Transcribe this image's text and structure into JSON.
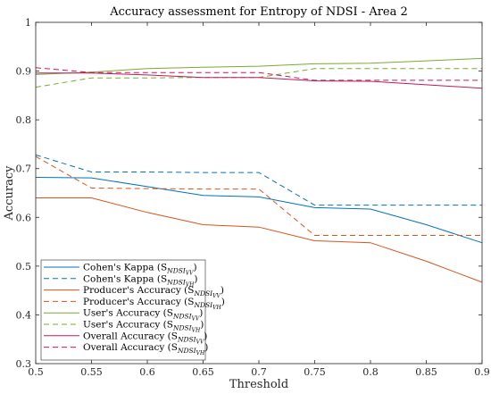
{
  "chart_data": {
    "type": "line",
    "title": "Accuracy assessment for Entropy of NDSI - Area 2",
    "xlabel": "Threshold",
    "ylabel": "Accuracy",
    "xlim": [
      0.5,
      0.9
    ],
    "ylim": [
      0.3,
      1
    ],
    "xticks": [
      0.5,
      0.55,
      0.6,
      0.65,
      0.7,
      0.75,
      0.8,
      0.85,
      0.9
    ],
    "yticks": [
      0.3,
      0.4,
      0.5,
      0.6,
      0.7,
      0.8,
      0.9,
      1
    ],
    "xtick_labels": [
      "0.5",
      "0.55",
      "0.6",
      "0.65",
      "0.7",
      "0.75",
      "0.8",
      "0.85",
      "0.9"
    ],
    "ytick_labels": [
      "0.3",
      "0.4",
      "0.5",
      "0.6",
      "0.7",
      "0.8",
      "0.9",
      "1"
    ],
    "grid": false,
    "legend_position": "bottom-left",
    "x": [
      0.5,
      0.55,
      0.6,
      0.65,
      0.7,
      0.75,
      0.8,
      0.85,
      0.9
    ],
    "series": [
      {
        "name": "Cohen's Kappa",
        "subscript": "NDSI",
        "subsub": "VV",
        "color": "#0072BD",
        "dash": "solid",
        "values": [
          0.682,
          0.681,
          0.663,
          0.645,
          0.642,
          0.62,
          0.617,
          0.585,
          0.548
        ]
      },
      {
        "name": "Cohen's Kappa",
        "subscript": "NDSI",
        "subsub": "VH",
        "color": "#0072BD",
        "dash": "dashed",
        "values": [
          0.728,
          0.693,
          0.693,
          0.692,
          0.692,
          0.625,
          0.625,
          0.625,
          0.625
        ]
      },
      {
        "name": "Producer's Accuracy",
        "subscript": "NDSI",
        "subsub": "VV",
        "color": "#D95319",
        "dash": "solid",
        "values": [
          0.64,
          0.64,
          0.61,
          0.585,
          0.58,
          0.552,
          0.548,
          0.51,
          0.467
        ]
      },
      {
        "name": "Producer's Accuracy",
        "subscript": "NDSI",
        "subsub": "VH",
        "color": "#D95319",
        "dash": "dashed",
        "values": [
          0.725,
          0.66,
          0.659,
          0.658,
          0.658,
          0.563,
          0.563,
          0.563,
          0.563
        ]
      },
      {
        "name": "User's Accuracy",
        "subscript": "NDSI",
        "subsub": "VV",
        "color": "#77AC30",
        "dash": "solid",
        "values": [
          0.893,
          0.898,
          0.905,
          0.908,
          0.91,
          0.915,
          0.916,
          0.921,
          0.926
        ]
      },
      {
        "name": "User's Accuracy",
        "subscript": "NDSI",
        "subsub": "VH",
        "color": "#77AC30",
        "dash": "dashed",
        "values": [
          0.867,
          0.886,
          0.886,
          0.887,
          0.887,
          0.905,
          0.905,
          0.905,
          0.905
        ]
      },
      {
        "name": "Overall Accuracy",
        "subscript": "NDSI",
        "subsub": "VV",
        "color": "#C2185B",
        "dash": "solid",
        "values": [
          0.896,
          0.896,
          0.892,
          0.887,
          0.887,
          0.88,
          0.879,
          0.872,
          0.865
        ]
      },
      {
        "name": "Overall Accuracy",
        "subscript": "NDSI",
        "subsub": "VH",
        "color": "#C2185B",
        "dash": "dashed",
        "values": [
          0.907,
          0.897,
          0.897,
          0.897,
          0.897,
          0.881,
          0.881,
          0.881,
          0.881
        ]
      }
    ]
  }
}
